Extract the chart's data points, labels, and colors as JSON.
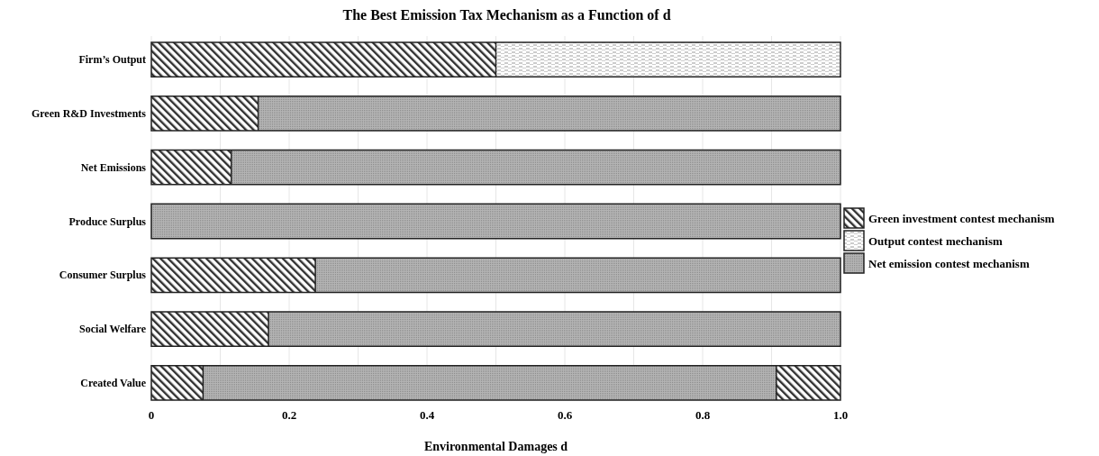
{
  "chart_data": {
    "type": "bar",
    "orientation": "horizontal",
    "stacked": true,
    "title": "The Best Emission Tax Mechanism as a Function of d",
    "xlabel": "Environmental Damages d",
    "categories": [
      "Firm’s Output",
      "Green R&D Investments",
      "Net Emissions",
      "Produce Surplus",
      "Consumer Surplus",
      "Social Welfare",
      "Created Value"
    ],
    "series": [
      {
        "name": "Green investment contest mechanism",
        "color": "#303030",
        "values": [
          0.5,
          0.155,
          0.116,
          null,
          0.238,
          0.17,
          0.075
        ]
      },
      {
        "name": "Output contest mechanism",
        "color": "#9a9a9a",
        "values": [
          0.5,
          null,
          null,
          null,
          null,
          null,
          null
        ]
      },
      {
        "name": "Net emission contest mechanism",
        "color": "#b4b4b4",
        "values": [
          null,
          0.845,
          0.884,
          1,
          0.762,
          0.83,
          0.832
        ]
      },
      {
        "color": "#303030",
        "values": [
          null,
          null,
          null,
          null,
          null,
          null,
          0.093
        ]
      }
    ],
    "xlim": [
      0,
      1
    ],
    "xticks": [
      0,
      {
        "value": 0.1,
        "label": null
      },
      "0.2",
      {
        "value": 0.3,
        "label": null
      },
      0.4,
      {
        "value": 0.5,
        "label": null
      },
      0.6,
      {
        "value": 0.7,
        "label": null
      },
      0.8,
      {
        "value": 0.9,
        "label": null
      },
      {
        "value": 1,
        "label": "1.0"
      }
    ],
    "grid": "x",
    "legend": "right"
  }
}
